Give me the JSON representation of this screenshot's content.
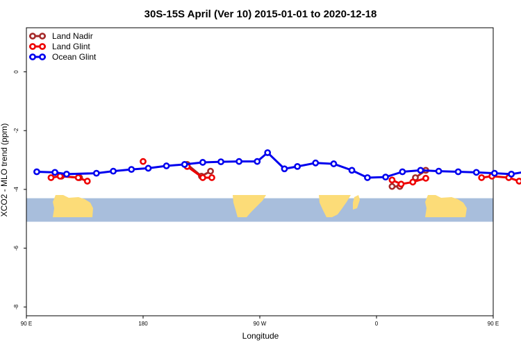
{
  "chart_data": {
    "type": "line",
    "title": "30S-15S April (Ver 10)   2015-01-01 to 2020-12-18",
    "xlabel": "Longitude",
    "ylabel": "XCO2 - MLO trend (ppm)",
    "xlim": [
      90,
      450
    ],
    "ylim": [
      -8.3,
      1.5
    ],
    "x_ticks": [
      {
        "value": 90,
        "label": "90 E"
      },
      {
        "value": 180,
        "label": "180"
      },
      {
        "value": 270,
        "label": "90 W"
      },
      {
        "value": 360,
        "label": "0"
      },
      {
        "value": 450,
        "label": "90 E"
      },
      {
        "value": 540,
        "label": "180"
      }
    ],
    "y_ticks": [
      {
        "value": 0,
        "label": "0"
      },
      {
        "value": -2,
        "label": "-2"
      },
      {
        "value": -4,
        "label": "-4"
      },
      {
        "value": -6,
        "label": "-6"
      },
      {
        "value": -8,
        "label": "-8"
      }
    ],
    "legend_position": "top-left",
    "map_band": {
      "ymin": -5.1,
      "ymax": -4.3,
      "ocean_color": "#a8bedc",
      "land_color": "#fcdc78"
    },
    "series": [
      {
        "name": "Land Nadir",
        "color": "#a52a2a",
        "segments": [
          [
            [
              117,
              -3.55
            ],
            [
              131,
              -3.6
            ]
          ],
          [
            [
              214,
              -3.15
            ],
            [
              225,
              -3.55
            ],
            [
              232,
              -3.38
            ]
          ],
          [
            [
              372,
              -3.9
            ],
            [
              378,
              -3.9
            ]
          ],
          [
            [
              390,
              -3.6
            ],
            [
              398,
              -3.35
            ]
          ]
        ]
      },
      {
        "name": "Land Glint",
        "color": "#ee0000",
        "segments": [
          [
            [
              109,
              -3.6
            ],
            [
              116,
              -3.55
            ],
            [
              130,
              -3.6
            ],
            [
              137,
              -3.72
            ]
          ],
          [
            [
              180,
              -3.05
            ]
          ],
          [
            [
              214,
              -3.22
            ],
            [
              226,
              -3.6
            ],
            [
              233,
              -3.6
            ]
          ],
          [
            [
              372,
              -3.68
            ],
            [
              379,
              -3.82
            ],
            [
              388,
              -3.75
            ],
            [
              398,
              -3.62
            ]
          ],
          [
            [
              441,
              -3.6
            ],
            [
              449,
              -3.55
            ],
            [
              462,
              -3.6
            ],
            [
              470,
              -3.72
            ]
          ]
        ]
      },
      {
        "name": "Ocean Glint",
        "color": "#0000ee",
        "segments": [
          [
            [
              98,
              -3.4
            ],
            [
              112,
              -3.42
            ],
            [
              121,
              -3.48
            ],
            [
              144,
              -3.45
            ],
            [
              157,
              -3.38
            ],
            [
              171,
              -3.32
            ],
            [
              184,
              -3.28
            ],
            [
              198,
              -3.2
            ],
            [
              212,
              -3.15
            ],
            [
              226,
              -3.08
            ],
            [
              240,
              -3.06
            ],
            [
              254,
              -3.05
            ],
            [
              268,
              -3.05
            ],
            [
              276,
              -2.75
            ],
            [
              289,
              -3.3
            ],
            [
              299,
              -3.22
            ],
            [
              313,
              -3.1
            ],
            [
              327,
              -3.13
            ],
            [
              341,
              -3.35
            ],
            [
              353,
              -3.6
            ],
            [
              367,
              -3.58
            ],
            [
              380,
              -3.4
            ],
            [
              394,
              -3.35
            ],
            [
              408,
              -3.38
            ],
            [
              423,
              -3.4
            ],
            [
              437,
              -3.42
            ],
            [
              451,
              -3.45
            ],
            [
              464,
              -3.48
            ],
            [
              478,
              -3.38
            ],
            [
              495,
              -3.35
            ],
            [
              508,
              -3.3
            ]
          ]
        ]
      }
    ]
  }
}
